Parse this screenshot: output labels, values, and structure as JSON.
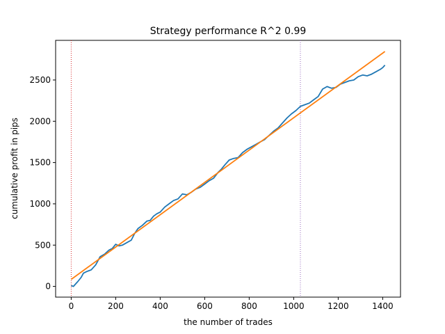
{
  "chart_data": {
    "type": "line",
    "title": "Strategy performance R^2 0.99",
    "xlabel": "the number of trades",
    "ylabel": "cumulative profit in pips",
    "xlim": [
      -70,
      1480
    ],
    "ylim": [
      -130,
      2980
    ],
    "xticks": [
      0,
      200,
      400,
      600,
      800,
      1000,
      1200,
      1400
    ],
    "yticks": [
      0,
      500,
      1000,
      1500,
      2000,
      2500
    ],
    "grid": false,
    "legend": "none",
    "vlines": [
      {
        "x": 0,
        "color": "#d62728",
        "style": "dotted"
      },
      {
        "x": 1030,
        "color": "#9467bd",
        "style": "dotted"
      }
    ],
    "series": [
      {
        "color": "#1f77b4",
        "x": [
          0,
          10,
          20,
          30,
          45,
          55,
          70,
          90,
          110,
          130,
          150,
          170,
          185,
          200,
          215,
          230,
          250,
          270,
          285,
          300,
          320,
          340,
          355,
          370,
          385,
          400,
          420,
          440,
          460,
          480,
          500,
          520,
          540,
          560,
          580,
          600,
          620,
          640,
          660,
          675,
          690,
          710,
          730,
          750,
          770,
          790,
          810,
          830,
          850,
          870,
          890,
          910,
          930,
          950,
          970,
          990,
          1010,
          1030,
          1050,
          1070,
          1090,
          1110,
          1130,
          1150,
          1170,
          1190,
          1210,
          1230,
          1250,
          1270,
          1290,
          1310,
          1330,
          1350,
          1370,
          1390,
          1400,
          1410
        ],
        "y": [
          10,
          0,
          30,
          60,
          110,
          160,
          180,
          200,
          260,
          360,
          390,
          440,
          460,
          510,
          490,
          500,
          530,
          560,
          640,
          700,
          740,
          790,
          800,
          850,
          880,
          900,
          960,
          1000,
          1040,
          1060,
          1120,
          1110,
          1140,
          1180,
          1200,
          1240,
          1280,
          1310,
          1380,
          1420,
          1470,
          1530,
          1550,
          1560,
          1620,
          1660,
          1690,
          1720,
          1750,
          1780,
          1830,
          1880,
          1920,
          1980,
          2040,
          2090,
          2130,
          2180,
          2200,
          2220,
          2260,
          2300,
          2390,
          2420,
          2400,
          2410,
          2450,
          2470,
          2490,
          2500,
          2540,
          2560,
          2550,
          2570,
          2600,
          2630,
          2650,
          2680
        ]
      },
      {
        "color": "#ff7f0e",
        "x": [
          0,
          1410
        ],
        "y": [
          85,
          2845
        ]
      }
    ]
  }
}
